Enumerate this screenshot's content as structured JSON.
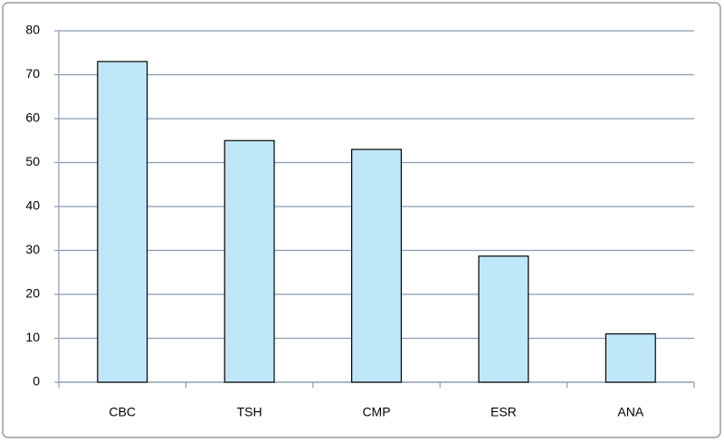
{
  "chart_data": {
    "type": "bar",
    "categories": [
      "CBC",
      "TSH",
      "CMP",
      "ESR",
      "ANA"
    ],
    "values": [
      73,
      55,
      53,
      28.7,
      11
    ],
    "color": "#bfe7fa",
    "ylim": [
      0,
      80
    ],
    "yticks": [
      0,
      10,
      20,
      30,
      40,
      50,
      60,
      70,
      80
    ],
    "grid": true
  }
}
